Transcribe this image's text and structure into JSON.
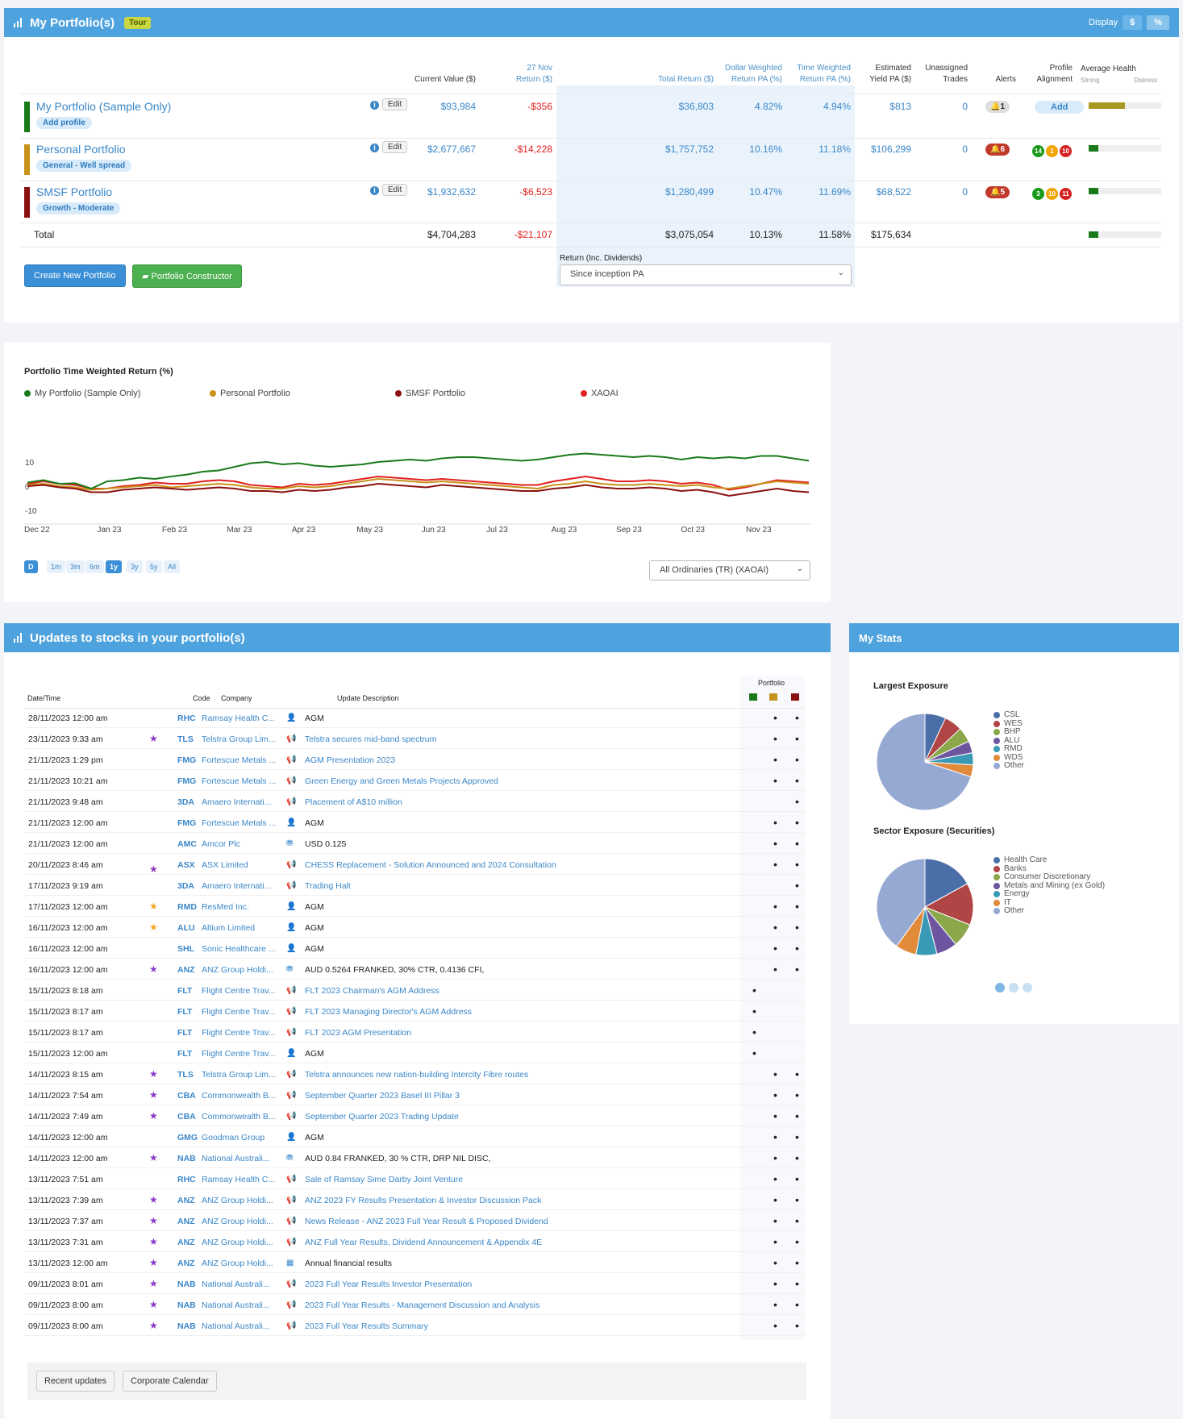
{
  "portfolio_panel": {
    "title": "My Portfolio(s)",
    "tour": "Tour",
    "display_label": "Display",
    "display_dollar": "$",
    "display_percent": "%"
  },
  "headers": {
    "current_value": "Current Value ($)",
    "period_date": "27 Nov",
    "period_return": "Return ($)",
    "total_return": "Total Return ($)",
    "dw_1": "Dollar Weighted",
    "dw_2": "Return PA (%)",
    "tw_1": "Time Weighted",
    "tw_2": "Return PA (%)",
    "yield_1": "Estimated",
    "yield_2": "Yield PA ($)",
    "trades_1": "Unassigned",
    "trades_2": "Trades",
    "alerts": "Alerts",
    "profile_1": "Profile",
    "profile_2": "Alignment",
    "health": "Average Health",
    "health_strong": "Strong",
    "health_distress": "Distress"
  },
  "portfolios": [
    {
      "name": "My Portfolio (Sample Only)",
      "tag": "Add profile",
      "edit": "Edit",
      "value": "$93,984",
      "period": "-$356",
      "total": "$36,803",
      "dw": "4.82%",
      "tw": "4.94%",
      "yield": "$813",
      "trades": "0",
      "alert": "1",
      "profile_add": "Add",
      "health_level": 0.5,
      "color": "#1a7a1a"
    },
    {
      "name": "Personal Portfolio",
      "tag": "General - Well spread",
      "edit": "Edit",
      "value": "$2,677,667",
      "period": "-$14,228",
      "total": "$1,757,752",
      "dw": "10.16%",
      "tw": "11.18%",
      "yield": "$106,299",
      "trades": "0",
      "alert": "6",
      "dots": [
        "14",
        "1",
        "10"
      ],
      "health_level": 0.13,
      "color": "#c8921a"
    },
    {
      "name": "SMSF Portfolio",
      "tag": "Growth - Moderate",
      "edit": "Edit",
      "value": "$1,932,632",
      "period": "-$6,523",
      "total": "$1,280,499",
      "dw": "10.47%",
      "tw": "11.69%",
      "yield": "$68,522",
      "trades": "0",
      "alert": "5",
      "dots": [
        "3",
        "10",
        "11"
      ],
      "health_level": 0.13,
      "color": "#8b1010"
    }
  ],
  "total": {
    "label": "Total",
    "value": "$4,704,283",
    "period": "-$21,107",
    "total": "$3,075,054",
    "dw": "10.13%",
    "tw": "11.58%",
    "yield": "$175,634",
    "health_level": 0.13
  },
  "buttons": {
    "create": "Create New Portfolio",
    "constructor": "Portfolio Constructor"
  },
  "return_select": {
    "label": "Return (Inc. Dividends)",
    "value": "Since inception PA"
  },
  "chart_panel": {
    "title": "Portfolio Time Weighted Return (%)",
    "ranges": [
      "D",
      "1m",
      "3m",
      "6m",
      "1y",
      "3y",
      "5y",
      "All"
    ],
    "active_range": "1y",
    "benchmark_select": "All Ordinaries (TR) (XAOAI)"
  },
  "chart_data": {
    "type": "line",
    "title": "Portfolio Time Weighted Return (%)",
    "x_ticks": [
      "Dec 22",
      "Jan 23",
      "Feb 23",
      "Mar 23",
      "Apr 23",
      "May 23",
      "Jun 23",
      "Jul 23",
      "Aug 23",
      "Sep 23",
      "Oct 23",
      "Nov 23"
    ],
    "y_ticks": [
      "10",
      "0",
      "-10"
    ],
    "ylim": [
      -10,
      10
    ],
    "series": [
      {
        "name": "My Portfolio (Sample Only)",
        "color": "#1a7a1a",
        "values": [
          1.5,
          2.5,
          1.0,
          1.2,
          -1.0,
          2.0,
          2.5,
          3.5,
          3.0,
          4.0,
          4.8,
          6.0,
          6.5,
          8.0,
          9.5,
          10.0,
          9.0,
          9.5,
          8.5,
          8.0,
          8.5,
          9.0,
          10.0,
          10.5,
          11.0,
          10.5,
          11.5,
          12.0,
          12.0,
          11.5,
          11.0,
          10.5,
          11.0,
          12.0,
          13.0,
          13.5,
          13.0,
          12.5,
          12.0,
          12.5,
          12.0,
          11.0,
          12.0,
          11.5,
          12.0,
          11.5,
          12.5,
          12.5,
          11.5,
          10.5
        ]
      },
      {
        "name": "Personal Portfolio",
        "color": "#c8921a",
        "values": [
          0.5,
          1.0,
          0.0,
          -0.5,
          -1.5,
          -1.0,
          -0.5,
          0.0,
          0.5,
          -0.5,
          0.0,
          0.5,
          1.0,
          0.5,
          -0.5,
          -1.0,
          -1.0,
          0.0,
          -0.5,
          0.0,
          1.0,
          2.0,
          3.0,
          2.5,
          2.0,
          1.5,
          2.0,
          1.5,
          1.0,
          0.5,
          0.0,
          -0.5,
          -1.0,
          0.5,
          1.0,
          2.0,
          1.0,
          0.5,
          0.5,
          1.0,
          0.5,
          0.0,
          0.5,
          -0.5,
          -1.0,
          0.0,
          1.0,
          2.0,
          1.5,
          1.0
        ]
      },
      {
        "name": "SMSF Portfolio",
        "color": "#8b1010",
        "values": [
          0.0,
          0.5,
          -0.5,
          -1.0,
          -2.5,
          -2.5,
          -1.5,
          -1.0,
          -0.5,
          -1.0,
          -1.5,
          -1.0,
          -0.5,
          -1.0,
          -2.0,
          -2.0,
          -2.5,
          -1.5,
          -2.0,
          -1.5,
          -0.5,
          0.0,
          1.0,
          0.5,
          0.0,
          -0.5,
          0.5,
          0.0,
          -0.5,
          -1.0,
          -1.5,
          -2.0,
          -2.0,
          -1.0,
          -0.5,
          0.5,
          -0.5,
          -1.0,
          -1.0,
          -0.5,
          -1.0,
          -2.0,
          -1.5,
          -2.5,
          -4.0,
          -3.0,
          -2.0,
          -1.0,
          -2.0,
          -2.5
        ]
      },
      {
        "name": "XAOAI",
        "color": "#e02020",
        "values": [
          1.0,
          2.0,
          1.0,
          0.5,
          -1.0,
          -1.0,
          0.0,
          0.5,
          1.5,
          1.0,
          1.0,
          2.0,
          2.5,
          2.0,
          0.5,
          0.0,
          -0.5,
          1.0,
          0.5,
          1.0,
          2.0,
          3.0,
          4.0,
          3.5,
          3.0,
          2.5,
          3.0,
          2.5,
          2.0,
          1.5,
          1.0,
          0.5,
          0.5,
          2.0,
          3.0,
          4.0,
          3.0,
          2.0,
          2.0,
          2.5,
          2.0,
          1.0,
          1.5,
          0.5,
          -1.5,
          -0.5,
          1.0,
          2.5,
          2.0,
          1.5
        ]
      }
    ]
  },
  "updates_panel": {
    "title": "Updates to stocks in your portfolio(s)",
    "col_portfolio": "Portfolio",
    "col_date": "Date/Time",
    "col_code": "Code",
    "col_company": "Company",
    "col_desc": "Update Description",
    "btn_recent": "Recent updates",
    "btn_calendar": "Corporate Calendar",
    "rows": [
      {
        "date": "28/11/2023 12:00 am",
        "stars": "",
        "code": "RHC",
        "company": "Ramsay Health C...",
        "icon": "person",
        "desc": "AGM",
        "link": false,
        "p": [
          0,
          1,
          1
        ]
      },
      {
        "date": "23/11/2023 9:33 am",
        "stars": "★",
        "code": "TLS",
        "company": "Telstra Group Lim...",
        "icon": "mega",
        "desc": "Telstra secures mid-band spectrum",
        "link": true,
        "p": [
          0,
          1,
          1
        ]
      },
      {
        "date": "21/11/2023 1:29 pm",
        "stars": "",
        "code": "FMG",
        "company": "Fortescue Metals ...",
        "icon": "mega",
        "desc": "AGM Presentation 2023",
        "link": true,
        "p": [
          0,
          1,
          1
        ]
      },
      {
        "date": "21/11/2023 10:21 am",
        "stars": "",
        "code": "FMG",
        "company": "Fortescue Metals ...",
        "icon": "mega",
        "desc": "Green Energy and Green Metals Projects Approved",
        "link": true,
        "p": [
          0,
          1,
          1
        ]
      },
      {
        "date": "21/11/2023 9:48 am",
        "stars": "",
        "code": "3DA",
        "company": "Amaero Internati...",
        "icon": "mega",
        "desc": "Placement of A$10 million",
        "link": true,
        "p": [
          0,
          0,
          1
        ]
      },
      {
        "date": "21/11/2023 12:00 am",
        "stars": "",
        "code": "FMG",
        "company": "Fortescue Metals ...",
        "icon": "person",
        "desc": "AGM",
        "link": false,
        "p": [
          0,
          1,
          1
        ]
      },
      {
        "date": "21/11/2023 12:00 am",
        "stars": "",
        "code": "AMC",
        "company": "Amcor Plc",
        "icon": "coins",
        "desc": "USD 0.125",
        "link": false,
        "p": [
          0,
          1,
          1
        ]
      },
      {
        "date": "20/11/2023 8:46 am",
        "stars": "★★",
        "code": "ASX",
        "company": "ASX Limited",
        "icon": "mega",
        "desc": "CHESS Replacement - Solution Announced and 2024 Consultation",
        "link": true,
        "p": [
          0,
          1,
          1
        ]
      },
      {
        "date": "17/11/2023 9:19 am",
        "stars": "",
        "code": "3DA",
        "company": "Amaero Internati...",
        "icon": "mega",
        "desc": "Trading Halt",
        "link": true,
        "p": [
          0,
          0,
          1
        ]
      },
      {
        "date": "17/11/2023 12:00 am",
        "stars": "★",
        "code": "RMD",
        "company": "ResMed Inc.",
        "icon": "person",
        "desc": "AGM",
        "link": false,
        "p": [
          0,
          1,
          1
        ]
      },
      {
        "date": "16/11/2023 12:00 am",
        "stars": "★",
        "code": "ALU",
        "company": "Altium Limited",
        "icon": "person",
        "desc": "AGM",
        "link": false,
        "p": [
          0,
          1,
          1
        ]
      },
      {
        "date": "16/11/2023 12:00 am",
        "stars": "",
        "code": "SHL",
        "company": "Sonic Healthcare ...",
        "icon": "person",
        "desc": "AGM",
        "link": false,
        "p": [
          0,
          1,
          1
        ]
      },
      {
        "date": "16/11/2023 12:00 am",
        "stars": "★",
        "code": "ANZ",
        "company": "ANZ Group Holdi...",
        "icon": "coins",
        "desc": "AUD 0.5264 FRANKED, 30% CTR, 0.4136 CFI,",
        "link": false,
        "p": [
          0,
          1,
          1
        ]
      },
      {
        "date": "15/11/2023 8:18 am",
        "stars": "",
        "code": "FLT",
        "company": "Flight Centre Trav...",
        "icon": "mega",
        "desc": "FLT 2023 Chairman's AGM Address",
        "link": true,
        "p": [
          1,
          0,
          0
        ]
      },
      {
        "date": "15/11/2023 8:17 am",
        "stars": "",
        "code": "FLT",
        "company": "Flight Centre Trav...",
        "icon": "mega",
        "desc": "FLT 2023 Managing Director's AGM Address",
        "link": true,
        "p": [
          1,
          0,
          0
        ]
      },
      {
        "date": "15/11/2023 8:17 am",
        "stars": "",
        "code": "FLT",
        "company": "Flight Centre Trav...",
        "icon": "mega",
        "desc": "FLT 2023 AGM Presentation",
        "link": true,
        "p": [
          1,
          0,
          0
        ]
      },
      {
        "date": "15/11/2023 12:00 am",
        "stars": "",
        "code": "FLT",
        "company": "Flight Centre Trav...",
        "icon": "person",
        "desc": "AGM",
        "link": false,
        "p": [
          1,
          0,
          0
        ]
      },
      {
        "date": "14/11/2023 8:15 am",
        "stars": "★",
        "code": "TLS",
        "company": "Telstra Group Lim...",
        "icon": "mega",
        "desc": "Telstra announces new nation-building Intercity Fibre routes",
        "link": true,
        "p": [
          0,
          1,
          1
        ]
      },
      {
        "date": "14/11/2023 7:54 am",
        "stars": "★",
        "code": "CBA",
        "company": "Commonwealth B...",
        "icon": "mega",
        "desc": "September Quarter 2023 Basel III Pillar 3",
        "link": true,
        "p": [
          0,
          1,
          1
        ]
      },
      {
        "date": "14/11/2023 7:49 am",
        "stars": "★",
        "code": "CBA",
        "company": "Commonwealth B...",
        "icon": "mega",
        "desc": "September Quarter 2023 Trading Update",
        "link": true,
        "p": [
          0,
          1,
          1
        ]
      },
      {
        "date": "14/11/2023 12:00 am",
        "stars": "",
        "code": "GMG",
        "company": "Goodman Group",
        "icon": "person",
        "desc": "AGM",
        "link": false,
        "p": [
          0,
          1,
          1
        ]
      },
      {
        "date": "14/11/2023 12:00 am",
        "stars": "★",
        "code": "NAB",
        "company": "National Australi...",
        "icon": "coins",
        "desc": "AUD 0.84 FRANKED, 30 % CTR, DRP NIL DISC,",
        "link": false,
        "p": [
          0,
          1,
          1
        ]
      },
      {
        "date": "13/11/2023 7:51 am",
        "stars": "",
        "code": "RHC",
        "company": "Ramsay Health C...",
        "icon": "mega",
        "desc": "Sale of Ramsay Sime Darby Joint Venture",
        "link": true,
        "p": [
          0,
          1,
          1
        ]
      },
      {
        "date": "13/11/2023 7:39 am",
        "stars": "★",
        "code": "ANZ",
        "company": "ANZ Group Holdi...",
        "icon": "mega",
        "desc": "ANZ 2023 FY Results Presentation & Investor Discussion Pack",
        "link": true,
        "p": [
          0,
          1,
          1
        ]
      },
      {
        "date": "13/11/2023 7:37 am",
        "stars": "★",
        "code": "ANZ",
        "company": "ANZ Group Holdi...",
        "icon": "mega",
        "desc": "News Release - ANZ 2023 Full Year Result & Proposed Dividend",
        "link": true,
        "p": [
          0,
          1,
          1
        ]
      },
      {
        "date": "13/11/2023 7:31 am",
        "stars": "★",
        "code": "ANZ",
        "company": "ANZ Group Holdi...",
        "icon": "mega",
        "desc": "ANZ Full Year Results, Dividend Announcement & Appendix 4E",
        "link": true,
        "p": [
          0,
          1,
          1
        ]
      },
      {
        "date": "13/11/2023 12:00 am",
        "stars": "★",
        "code": "ANZ",
        "company": "ANZ Group Holdi...",
        "icon": "calendar",
        "desc": "Annual financial results",
        "link": false,
        "p": [
          0,
          1,
          1
        ]
      },
      {
        "date": "09/11/2023 8:01 am",
        "stars": "★",
        "code": "NAB",
        "company": "National Australi...",
        "icon": "mega",
        "desc": "2023 Full Year Results Investor Presentation",
        "link": true,
        "p": [
          0,
          1,
          1
        ]
      },
      {
        "date": "09/11/2023 8:00 am",
        "stars": "★",
        "code": "NAB",
        "company": "National Australi...",
        "icon": "mega",
        "desc": "2023 Full Year Results - Management Discussion and Analysis",
        "link": true,
        "p": [
          0,
          1,
          1
        ]
      },
      {
        "date": "09/11/2023 8:00 am",
        "stars": "★",
        "code": "NAB",
        "company": "National Australi...",
        "icon": "mega",
        "desc": "2023 Full Year Results Summary",
        "link": true,
        "p": [
          0,
          1,
          1
        ]
      }
    ]
  },
  "stats_panel": {
    "title": "My Stats",
    "largest_title": "Largest Exposure",
    "sector_title": "Sector Exposure (Securities)",
    "largest": [
      {
        "label": "CSL",
        "color": "#4a6fa8",
        "value": 7
      },
      {
        "label": "WES",
        "color": "#b04545",
        "value": 6
      },
      {
        "label": "BHP",
        "color": "#8aa84a",
        "value": 5
      },
      {
        "label": "ALU",
        "color": "#6e55a0",
        "value": 4
      },
      {
        "label": "RMD",
        "color": "#3a9ab5",
        "value": 4
      },
      {
        "label": "WDS",
        "color": "#e08a3a",
        "value": 4
      },
      {
        "label": "Other",
        "color": "#95a9d2",
        "value": 70
      }
    ],
    "sector": [
      {
        "label": "Health Care",
        "color": "#4a6fa8",
        "value": 17
      },
      {
        "label": "Banks",
        "color": "#b04545",
        "value": 14
      },
      {
        "label": "Consumer Discretionary",
        "color": "#8aa84a",
        "value": 8
      },
      {
        "label": "Metals and Mining (ex Gold)",
        "color": "#6e55a0",
        "value": 7
      },
      {
        "label": "Energy",
        "color": "#3a9ab5",
        "value": 7
      },
      {
        "label": "IT",
        "color": "#e08a3a",
        "value": 7
      },
      {
        "label": "Other",
        "color": "#95a9d2",
        "value": 40
      }
    ]
  }
}
